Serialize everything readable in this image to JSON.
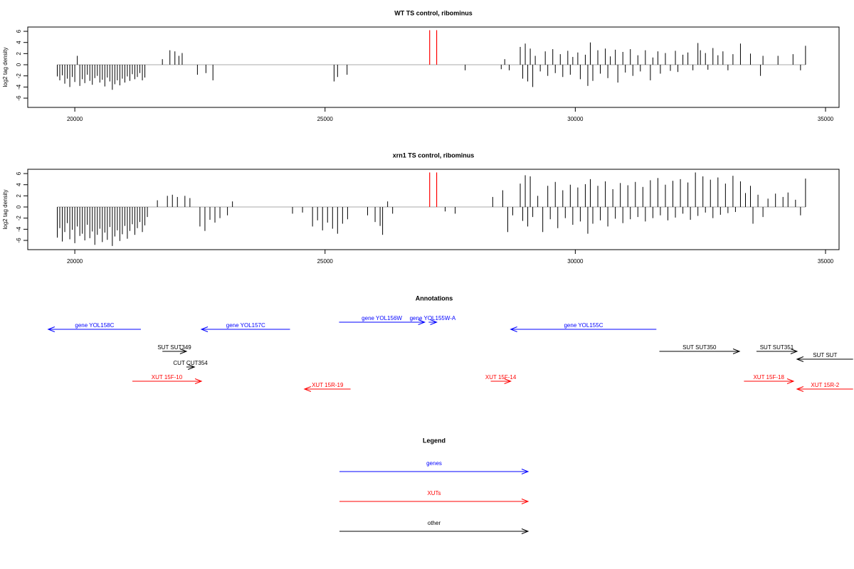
{
  "chart_data": [
    {
      "type": "bar",
      "title": "WT TS control, ribominus",
      "y_label": "log2 tag density",
      "color": "#000000",
      "x": [
        19650,
        19700,
        19750,
        19800,
        19850,
        19900,
        19950,
        20000,
        20050,
        20100,
        20150,
        20200,
        20250,
        20300,
        20350,
        20400,
        20450,
        20500,
        20550,
        20600,
        20650,
        20700,
        20750,
        20800,
        20850,
        20900,
        20950,
        21000,
        21050,
        21100,
        21150,
        21200,
        21250,
        21300,
        21350,
        21400,
        21750,
        21900,
        22000,
        22080,
        22145,
        22450,
        22620,
        22760,
        25180,
        25250,
        25440,
        27800,
        28520,
        28590,
        28680,
        28900,
        28950,
        29000,
        29050,
        29100,
        29150,
        29200,
        29300,
        29400,
        29450,
        29550,
        29600,
        29700,
        29750,
        29850,
        29900,
        29950,
        30050,
        30100,
        30200,
        30250,
        30300,
        30350,
        30450,
        30500,
        30600,
        30650,
        30700,
        30800,
        30850,
        30950,
        31000,
        31100,
        31150,
        31250,
        31300,
        31400,
        31500,
        31550,
        31650,
        31700,
        31800,
        31900,
        32000,
        32050,
        32150,
        32250,
        32350,
        32450,
        32500,
        32600,
        32650,
        32750,
        32850,
        32950,
        33050,
        33150,
        33300,
        33500,
        33700,
        33750,
        34050,
        34350,
        34500,
        34600
      ],
      "values": [
        -2.1,
        -2.8,
        -1.9,
        -3.4,
        -2.5,
        -4.0,
        -2.2,
        -3.1,
        1.6,
        -3.8,
        -2.6,
        -3.3,
        -1.8,
        -2.9,
        -3.6,
        -2.4,
        -2.0,
        -3.2,
        -2.7,
        -3.9,
        -2.3,
        -3.0,
        -4.5,
        -3.5,
        -2.8,
        -3.7,
        -2.5,
        -3.2,
        -2.1,
        -2.9,
        -1.7,
        -2.6,
        -2.2,
        -1.5,
        -2.8,
        -2.3,
        1.0,
        2.6,
        2.4,
        1.6,
        2.1,
        -1.8,
        -1.5,
        -2.8,
        -3.0,
        -2.2,
        -1.8,
        -1.0,
        -0.8,
        1.0,
        -1.0,
        3.2,
        -2.5,
        3.8,
        -3.0,
        2.9,
        -4.0,
        1.6,
        -1.2,
        2.4,
        -2.0,
        2.8,
        -1.5,
        1.9,
        -2.2,
        2.5,
        -1.8,
        1.4,
        2.2,
        -2.6,
        1.8,
        -3.8,
        4.0,
        -2.9,
        2.6,
        -1.6,
        2.9,
        -2.4,
        1.5,
        2.7,
        -3.2,
        2.3,
        -1.4,
        2.8,
        -2.0,
        1.7,
        -1.2,
        2.6,
        -2.8,
        1.3,
        2.4,
        -1.6,
        2.1,
        -1.1,
        2.5,
        -1.3,
        1.8,
        2.2,
        -1.0,
        3.9,
        2.6,
        2.1,
        -0.9,
        3.0,
        1.7,
        2.4,
        -1.0,
        1.9,
        3.8,
        2.0,
        -2.0,
        1.6,
        1.6,
        1.9,
        -1.0,
        3.4
      ],
      "highlight": {
        "color": "#ff0000",
        "x": [
          27090,
          27230
        ],
        "values": [
          6.2,
          6.2
        ]
      },
      "xlim": [
        19060,
        35270
      ],
      "ylim": [
        -7.66,
        6.77
      ],
      "xticks": [
        20000,
        25000,
        30000,
        35000
      ],
      "yticks": [
        -6,
        -4,
        -2,
        0,
        2,
        4,
        6
      ]
    },
    {
      "type": "bar",
      "title": "xrn1 TS control, ribominus",
      "y_label": "log2 tag density",
      "color": "#000000",
      "x": [
        19650,
        19700,
        19750,
        19800,
        19850,
        19900,
        19950,
        20000,
        20050,
        20100,
        20150,
        20200,
        20250,
        20300,
        20350,
        20400,
        20450,
        20500,
        20550,
        20600,
        20650,
        20700,
        20750,
        20800,
        20850,
        20900,
        20950,
        21000,
        21050,
        21100,
        21150,
        21200,
        21250,
        21300,
        21350,
        21400,
        21450,
        21650,
        21850,
        21950,
        22050,
        22200,
        22300,
        22500,
        22600,
        22700,
        22800,
        22900,
        23050,
        23150,
        24350,
        24550,
        24750,
        24850,
        24950,
        25050,
        25150,
        25250,
        25350,
        25450,
        25850,
        26000,
        26100,
        26150,
        26250,
        26350,
        27400,
        27600,
        28350,
        28550,
        28650,
        28750,
        28900,
        28950,
        29000,
        29050,
        29100,
        29150,
        29250,
        29350,
        29450,
        29500,
        29600,
        29650,
        29750,
        29800,
        29900,
        29950,
        30050,
        30100,
        30200,
        30250,
        30300,
        30350,
        30450,
        30500,
        30600,
        30650,
        30750,
        30800,
        30900,
        30950,
        31050,
        31100,
        31200,
        31250,
        31350,
        31400,
        31500,
        31550,
        31650,
        31700,
        31800,
        31850,
        31950,
        32000,
        32100,
        32150,
        32250,
        32300,
        32400,
        32450,
        32550,
        32600,
        32700,
        32750,
        32850,
        32900,
        33000,
        33050,
        33150,
        33200,
        33300,
        33400,
        33500,
        33550,
        33650,
        33750,
        33850,
        34000,
        34150,
        34250,
        34400,
        34500,
        34600
      ],
      "values": [
        -5.5,
        -3.8,
        -6.2,
        -4.5,
        -2.9,
        -5.8,
        -4.1,
        -6.5,
        -3.5,
        -5.2,
        -4.8,
        -6.0,
        -3.2,
        -5.6,
        -4.4,
        -6.8,
        -5.0,
        -3.9,
        -6.3,
        -4.6,
        -5.9,
        -3.6,
        -7.0,
        -5.3,
        -4.2,
        -6.1,
        -4.9,
        -3.4,
        -5.7,
        -4.3,
        -3.1,
        -5.0,
        -3.8,
        -2.7,
        -4.5,
        -3.3,
        -1.8,
        1.2,
        2.0,
        2.2,
        1.8,
        2.0,
        1.6,
        -3.5,
        -4.3,
        -2.3,
        -2.8,
        -2.0,
        -1.5,
        1.0,
        -1.2,
        -1.0,
        -3.5,
        -2.4,
        -4.2,
        -2.8,
        -3.9,
        -4.8,
        -3.0,
        -2.2,
        -1.5,
        -2.7,
        -3.4,
        -5.0,
        1.0,
        -1.2,
        -0.8,
        -1.2,
        1.8,
        3.0,
        -4.5,
        -1.5,
        4.2,
        -2.5,
        5.7,
        -3.5,
        5.5,
        -1.8,
        2.0,
        -4.5,
        3.8,
        -2.2,
        4.5,
        -3.8,
        3.0,
        -2.0,
        4.0,
        -3.2,
        3.5,
        -2.6,
        4.1,
        -4.8,
        5.0,
        -3.0,
        3.8,
        -2.4,
        4.6,
        -3.5,
        3.2,
        -2.1,
        4.3,
        -2.9,
        3.9,
        -2.2,
        4.5,
        -1.8,
        3.6,
        -2.6,
        4.8,
        -2.0,
        5.2,
        -1.5,
        4.0,
        -2.4,
        4.7,
        -1.9,
        5.0,
        -1.2,
        4.4,
        -2.3,
        6.2,
        -1.6,
        5.5,
        -1.0,
        4.9,
        -2.0,
        5.3,
        -1.4,
        4.2,
        -1.1,
        5.6,
        -0.9,
        4.6,
        2.5,
        3.8,
        -3.0,
        2.2,
        -1.8,
        1.5,
        2.4,
        1.8,
        2.6,
        1.3,
        -1.5,
        5.1
      ],
      "highlight": {
        "color": "#ff0000",
        "x": [
          27090,
          27230
        ],
        "values": [
          6.2,
          6.2
        ]
      },
      "xlim": [
        19060,
        35270
      ],
      "ylim": [
        -7.66,
        6.77
      ],
      "xticks": [
        20000,
        25000,
        30000,
        35000
      ],
      "yticks": [
        -6,
        -4,
        -2,
        0,
        2,
        4,
        6
      ]
    }
  ],
  "annotations": {
    "title": "Annotations",
    "features": [
      {
        "label": "gene YOL158C",
        "from": 21320,
        "to": 19470,
        "color": "#0000ff"
      },
      {
        "label": "gene YOL157C",
        "from": 24300,
        "to": 22530,
        "color": "#0000ff"
      },
      {
        "label": "gene YOL156W",
        "from": 25280,
        "to": 26990,
        "color": "#0000ff"
      },
      {
        "label": "gene YOL155W-A",
        "from": 27070,
        "to": 27230,
        "color": "#0000ff"
      },
      {
        "label": "gene YOL155C",
        "from": 31620,
        "to": 28710,
        "color": "#0000ff"
      },
      {
        "label": "SUT SUT349",
        "from": 21750,
        "to": 22230,
        "color": "#000000"
      },
      {
        "label": "CUT CUT354",
        "from": 22230,
        "to": 22390,
        "color": "#000000"
      },
      {
        "label": "SUT SUT350",
        "from": 31680,
        "to": 33280,
        "color": "#000000"
      },
      {
        "label": "SUT SUT351",
        "from": 33620,
        "to": 34430,
        "color": "#000000"
      },
      {
        "label": "SUT SUT",
        "from": 35550,
        "to": 34430,
        "color": "#000000"
      },
      {
        "label": "XUT 15F-10",
        "from": 21150,
        "to": 22530,
        "color": "#ff0000"
      },
      {
        "label": "XUT 15R-19",
        "from": 25510,
        "to": 24590,
        "color": "#ff0000"
      },
      {
        "label": "XUT 15F-14",
        "from": 28310,
        "to": 28710,
        "color": "#ff0000"
      },
      {
        "label": "XUT 15F-18",
        "from": 33370,
        "to": 34360,
        "color": "#ff0000"
      },
      {
        "label": "XUT 15R-2",
        "from": 35550,
        "to": 34430,
        "color": "#ff0000"
      }
    ]
  },
  "legend": {
    "title": "Legend",
    "items": [
      {
        "label": "genes",
        "color": "#0000ff"
      },
      {
        "label": "XUTs",
        "color": "#ff0000"
      },
      {
        "label": "other",
        "color": "#000000"
      }
    ]
  }
}
